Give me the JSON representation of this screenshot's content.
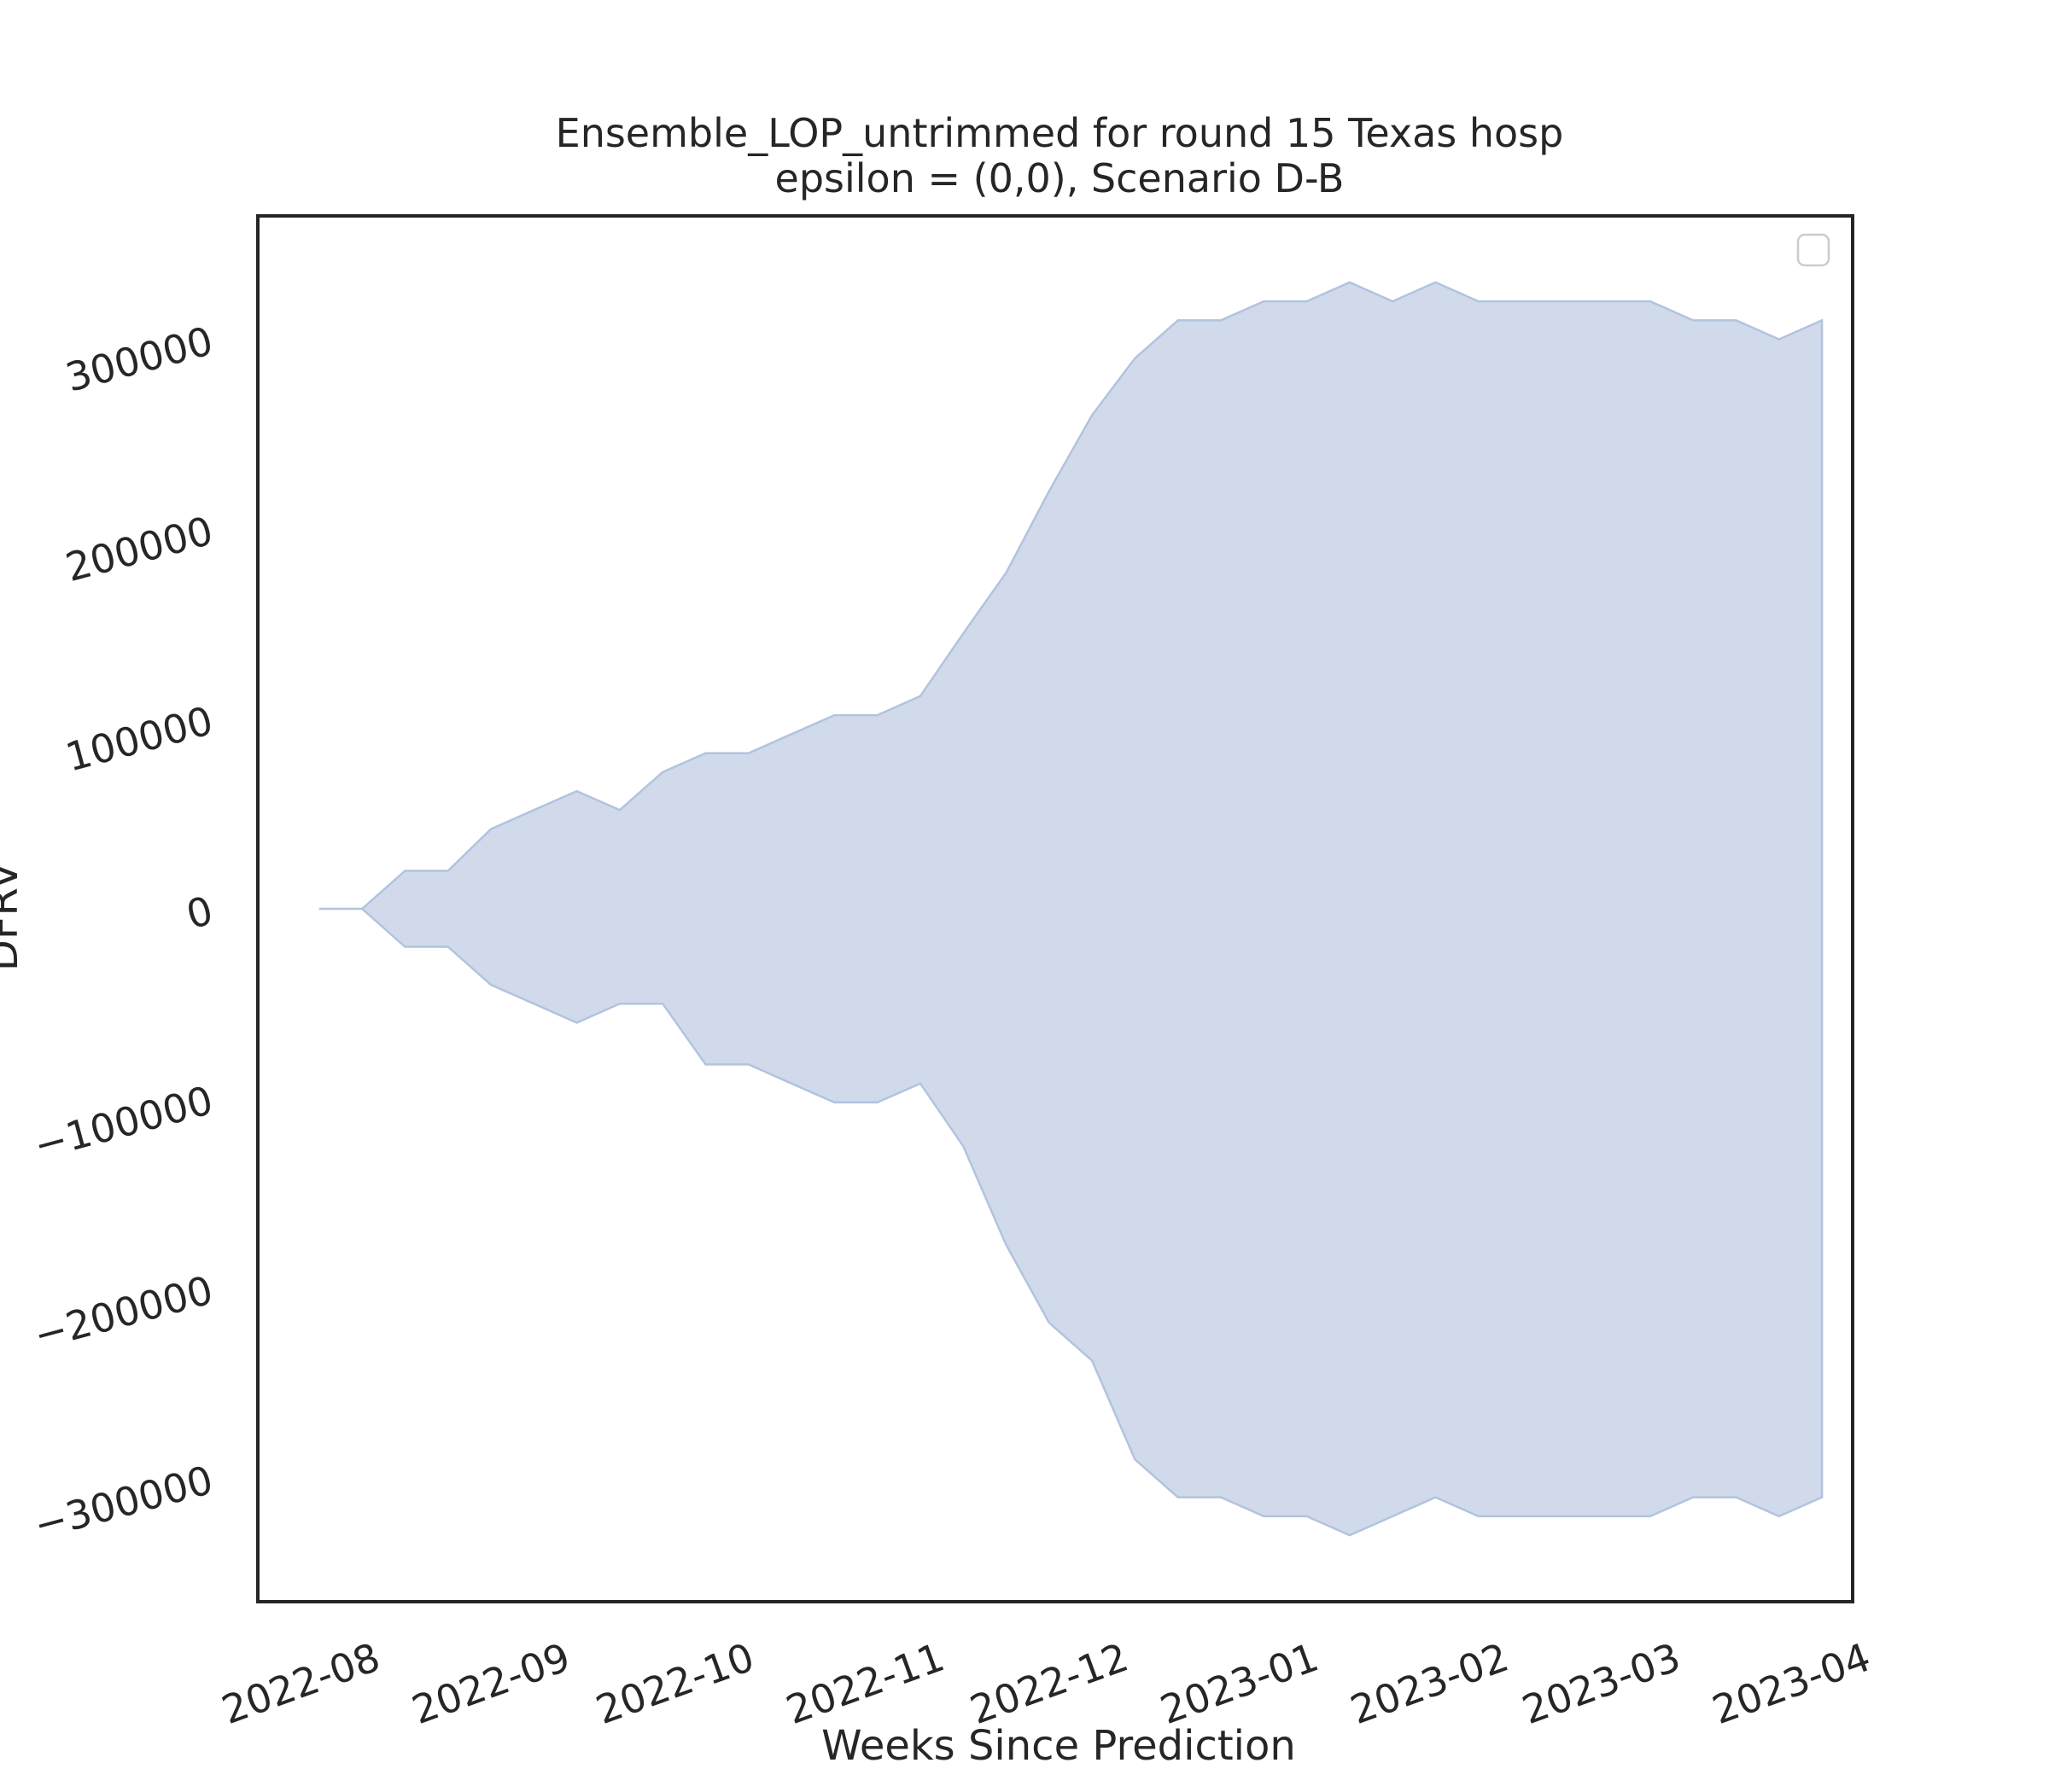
{
  "chart_data": {
    "type": "area",
    "title": "Ensemble_LOP_untrimmed for round 15 Texas hosp",
    "subtitle": "epsilon = (0,0), Scenario D-B",
    "xlabel": "Weeks Since Prediction",
    "ylabel": "DFRV",
    "x_ticks": [
      "2022-08",
      "2022-09",
      "2022-10",
      "2022-11",
      "2022-12",
      "2023-01",
      "2023-02",
      "2023-03",
      "2023-04"
    ],
    "y_ticks": [
      -300000,
      -200000,
      -100000,
      0,
      100000,
      200000,
      300000
    ],
    "y_tick_labels": [
      "−300000",
      "−200000",
      "−100000",
      "0",
      "100000",
      "200000",
      "300000"
    ],
    "xlim": [
      "2022-07-15",
      "2023-04-01"
    ],
    "ylim": [
      -365000,
      365000
    ],
    "grid": false,
    "legend": {
      "placement": "upper right",
      "entries": []
    },
    "fill_color": "#d1daea",
    "edge_color": "#b2c3de",
    "series": [
      {
        "x": [
          "2022-07-25",
          "2022-08-01",
          "2022-08-08",
          "2022-08-15",
          "2022-08-22",
          "2022-08-29",
          "2022-09-05",
          "2022-09-12",
          "2022-09-19",
          "2022-09-26",
          "2022-10-03",
          "2022-10-10",
          "2022-10-17",
          "2022-10-24",
          "2022-10-31",
          "2022-11-07",
          "2022-11-14",
          "2022-11-21",
          "2022-11-28",
          "2022-12-05",
          "2022-12-12",
          "2022-12-19",
          "2022-12-26",
          "2023-01-02",
          "2023-01-09",
          "2023-01-16",
          "2023-01-23",
          "2023-01-30",
          "2023-02-06",
          "2023-02-13",
          "2023-02-20",
          "2023-02-27",
          "2023-03-06",
          "2023-03-13",
          "2023-03-20",
          "2023-03-27"
        ],
        "upper": [
          0,
          0,
          20000,
          20000,
          42000,
          52000,
          62000,
          52000,
          72000,
          82000,
          82000,
          92000,
          102000,
          102000,
          112000,
          145000,
          177000,
          220000,
          260000,
          290000,
          310000,
          310000,
          320000,
          320000,
          330000,
          320000,
          330000,
          320000,
          320000,
          320000,
          320000,
          320000,
          310000,
          310000,
          300000,
          310000
        ],
        "lower": [
          0,
          0,
          -20000,
          -20000,
          -40000,
          -50000,
          -60000,
          -50000,
          -50000,
          -82000,
          -82000,
          -92000,
          -102000,
          -102000,
          -92000,
          -125000,
          -177000,
          -218000,
          -238000,
          -290000,
          -310000,
          -310000,
          -320000,
          -320000,
          -330000,
          -320000,
          -310000,
          -320000,
          -320000,
          -320000,
          -320000,
          -320000,
          -310000,
          -310000,
          -320000,
          -310000
        ]
      }
    ]
  }
}
